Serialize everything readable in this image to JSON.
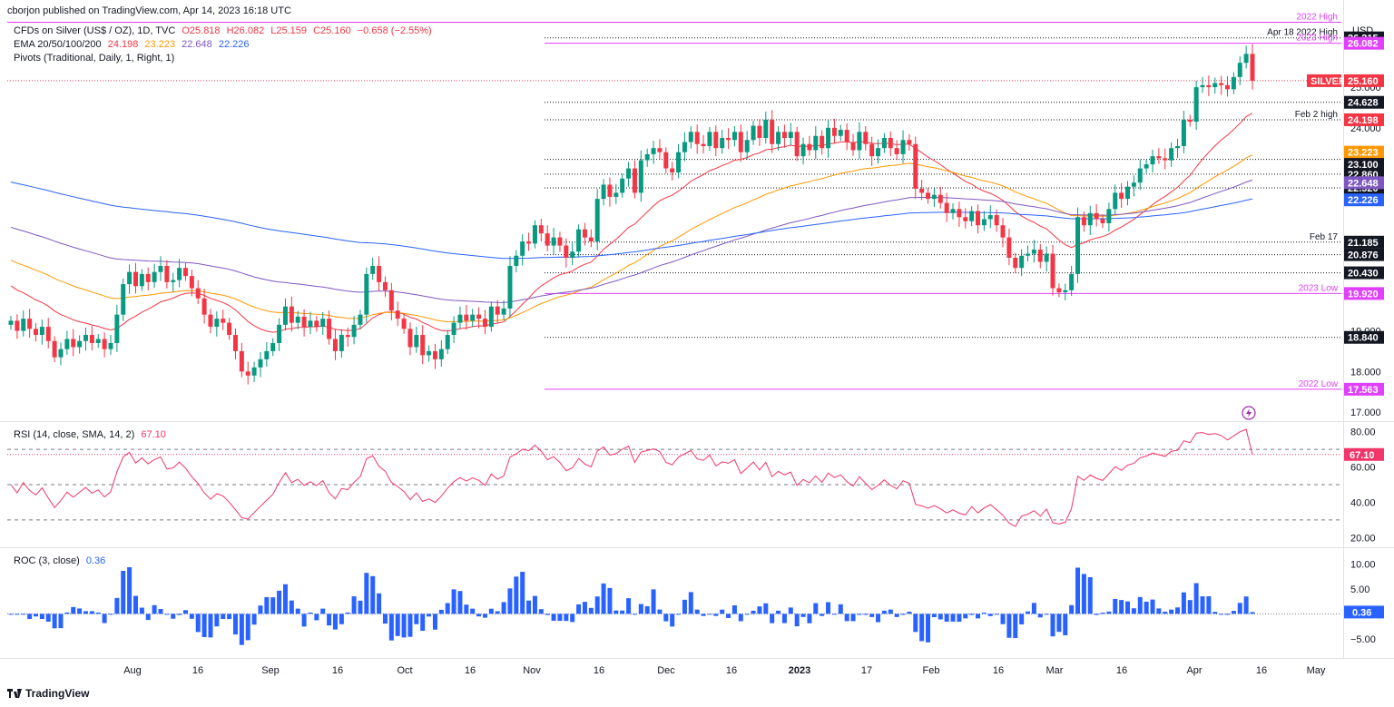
{
  "header": {
    "published": "cborjon published on TradingView.com, Apr 14, 2023 16:18 UTC",
    "symbol": "CFDs on Silver (US$ / OZ), 1D, TVC",
    "open": "O25.818",
    "high": "H26.082",
    "low": "L25.159",
    "close": "C25.160",
    "change": "−0.658 (−2.55%)",
    "ema_label": "EMA 20/50/100/200",
    "ema20": "24.198",
    "ema50": "23.223",
    "ema100": "22.648",
    "ema200": "22.226",
    "pivots": "Pivots (Traditional, Daily, 1, Right, 1)"
  },
  "footer": {
    "brand": "TradingView"
  },
  "colors": {
    "up": "#089981",
    "down": "#f23645",
    "ema20": "#f23645",
    "ema50": "#ff9800",
    "ema100": "#7e57c2",
    "ema200": "#2962ff",
    "rsi": "#f23669",
    "roc": "#2962ff",
    "magenta": "#e040fb"
  },
  "chart_data": [
    {
      "type": "candlestick",
      "title": "CFDs on Silver (US$ / OZ), 1D, TVC",
      "currency": "USD",
      "x_ticks": [
        "Aug",
        "16",
        "Sep",
        "16",
        "Oct",
        "16",
        "Nov",
        "16",
        "Dec",
        "16",
        "2023",
        "17",
        "Feb",
        "16",
        "Mar",
        "16",
        "Apr",
        "16",
        "May"
      ],
      "y_ticks": [
        "25.000",
        "24.000",
        "19.000",
        "18.000",
        "17.000"
      ],
      "ylim": [
        16.8,
        26.7
      ],
      "closes": [
        19.25,
        19.0,
        19.3,
        19.05,
        18.9,
        19.1,
        18.75,
        18.35,
        18.55,
        18.8,
        18.6,
        18.75,
        18.9,
        18.7,
        18.8,
        18.55,
        18.7,
        19.4,
        20.15,
        20.45,
        20.1,
        20.4,
        20.2,
        20.45,
        20.6,
        20.2,
        20.25,
        20.55,
        20.35,
        20.05,
        19.8,
        19.4,
        19.1,
        19.3,
        19.2,
        18.9,
        18.5,
        18.0,
        17.9,
        18.1,
        18.3,
        18.5,
        18.7,
        19.15,
        19.6,
        19.2,
        19.35,
        19.1,
        19.25,
        19.1,
        19.3,
        18.8,
        18.5,
        18.9,
        18.85,
        19.15,
        19.4,
        20.4,
        20.6,
        20.2,
        20.0,
        19.5,
        19.3,
        19.05,
        18.6,
        18.9,
        18.4,
        18.5,
        18.3,
        18.55,
        18.9,
        19.2,
        19.4,
        19.25,
        19.4,
        19.3,
        19.1,
        19.6,
        19.4,
        19.55,
        20.6,
        20.85,
        21.2,
        21.15,
        21.6,
        21.4,
        21.1,
        21.3,
        21.1,
        20.8,
        20.95,
        21.5,
        21.3,
        21.2,
        22.25,
        22.6,
        22.3,
        22.4,
        22.75,
        23.0,
        22.4,
        23.2,
        23.35,
        23.5,
        23.4,
        23.0,
        22.9,
        23.4,
        23.65,
        23.9,
        23.6,
        23.55,
        23.9,
        23.5,
        23.75,
        23.7,
        23.9,
        23.4,
        23.7,
        24.05,
        23.75,
        24.2,
        23.6,
        23.9,
        23.75,
        23.9,
        23.3,
        23.6,
        23.45,
        23.8,
        23.5,
        24.0,
        23.8,
        23.95,
        23.65,
        23.45,
        23.9,
        23.6,
        23.3,
        23.5,
        23.75,
        23.5,
        23.35,
        23.7,
        23.6,
        22.5,
        22.4,
        22.25,
        22.35,
        22.15,
        21.9,
        22.0,
        21.8,
        21.7,
        21.95,
        21.6,
        21.75,
        21.85,
        21.6,
        21.3,
        20.8,
        20.55,
        20.85,
        20.9,
        21.0,
        20.7,
        20.9,
        20.05,
        19.95,
        20.0,
        20.4,
        21.8,
        21.6,
        21.9,
        21.75,
        21.65,
        22.0,
        22.4,
        22.25,
        22.55,
        22.65,
        23.0,
        23.1,
        23.3,
        23.25,
        23.2,
        23.5,
        23.55,
        24.2,
        24.15,
        25.0,
        25.05,
        25.0,
        25.1,
        25.05,
        24.95,
        25.25,
        25.6,
        25.82,
        25.16
      ],
      "ema": [
        {
          "name": "EMA 20",
          "value": 24.198
        },
        {
          "name": "EMA 50",
          "value": 23.223
        },
        {
          "name": "EMA 100",
          "value": 22.648
        },
        {
          "name": "EMA 200",
          "value": 22.226
        }
      ],
      "levels": [
        {
          "label": "2022 High",
          "price": 26.6,
          "tag": "",
          "color": "#e040fb",
          "style": "solid",
          "tag_bg": ""
        },
        {
          "label": "Apr 18 2022 High",
          "price": 26.215,
          "tag": "26.215",
          "color": "#131722",
          "style": "dotted",
          "tag_bg": "#131722"
        },
        {
          "label": "2023 High",
          "price": 26.082,
          "tag": "26.082",
          "color": "#e040fb",
          "style": "solid",
          "tag_bg": "#e040fb"
        },
        {
          "label": "",
          "price": 24.628,
          "tag": "24.628",
          "color": "#131722",
          "style": "dotted",
          "tag_bg": "#131722"
        },
        {
          "label": "Feb 2 high",
          "price": 24.198,
          "tag": "24.198",
          "color": "#131722",
          "style": "dotted",
          "tag_bg": "#f23645"
        },
        {
          "label": "",
          "price": 23.223,
          "tag": "23.223",
          "color": "#131722",
          "style": "dotted",
          "tag_bg": "#131722"
        },
        {
          "label": "",
          "price": 22.86,
          "tag": "22.860",
          "color": "#131722",
          "style": "dotted",
          "tag_bg": "#131722"
        },
        {
          "label": "",
          "price": 22.52,
          "tag": "22.520",
          "color": "#131722",
          "style": "dotted",
          "tag_bg": "#131722"
        },
        {
          "label": "Feb 17",
          "price": 21.185,
          "tag": "21.185",
          "color": "#131722",
          "style": "dotted",
          "tag_bg": "#131722"
        },
        {
          "label": "",
          "price": 20.876,
          "tag": "20.876",
          "color": "#131722",
          "style": "dotted",
          "tag_bg": "#131722"
        },
        {
          "label": "",
          "price": 20.43,
          "tag": "20.430",
          "color": "#131722",
          "style": "dotted",
          "tag_bg": "#131722"
        },
        {
          "label": "2023 Low",
          "price": 19.92,
          "tag": "19.920",
          "color": "#e040fb",
          "style": "solid",
          "tag_bg": "#e040fb"
        },
        {
          "label": "",
          "price": 18.84,
          "tag": "18.840",
          "color": "#131722",
          "style": "dotted",
          "tag_bg": "#131722"
        },
        {
          "label": "2022 Low",
          "price": 17.563,
          "tag": "17.563",
          "color": "#e040fb",
          "style": "solid",
          "tag_bg": "#e040fb"
        }
      ],
      "right_tags": [
        {
          "text": "SILVER",
          "price": 25.16,
          "bg": "#f23645"
        },
        {
          "text": "25.160",
          "price": 25.16,
          "bg": "#f23645"
        },
        {
          "text": "23.223",
          "price": 23.4,
          "bg": "#ff9800"
        },
        {
          "text": "23.100",
          "price": 23.1,
          "bg": "#131722"
        },
        {
          "text": "22.648",
          "price": 22.648,
          "bg": "#7e57c2"
        },
        {
          "text": "22.226",
          "price": 22.226,
          "bg": "#2962ff"
        }
      ]
    },
    {
      "type": "line",
      "title": "RSI (14, close, SMA, 14, 2)",
      "value": "67.10",
      "y_ticks": [
        "80.00",
        "60.00",
        "40.00",
        "20.00"
      ],
      "ylim": [
        15,
        85
      ],
      "levels": [
        70,
        50,
        30
      ],
      "current": 67.1
    },
    {
      "type": "bar",
      "title": "ROC (3, close)",
      "value": "0.36",
      "y_ticks": [
        "10.00",
        "5.00",
        "−5.00"
      ],
      "ylim": [
        -8.5,
        13
      ],
      "current": 0.36
    }
  ]
}
